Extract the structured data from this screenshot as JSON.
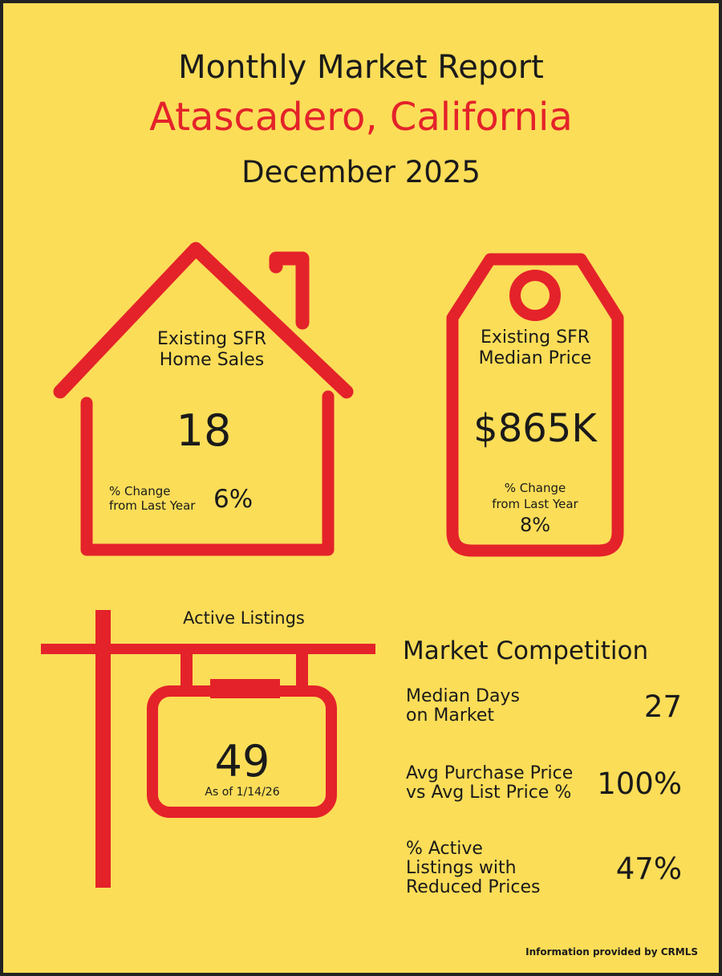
{
  "header": {
    "title": "Monthly Market Report",
    "city": "Atascadero, California",
    "month": "December 2025"
  },
  "home_sales": {
    "label_line1": "Existing SFR",
    "label_line2": "Home Sales",
    "value": "18",
    "change_label_line1": "% Change",
    "change_label_line2": "from Last Year",
    "change_value": "6%"
  },
  "median_price": {
    "label_line1": "Existing SFR",
    "label_line2": "Median Price",
    "value": "$865K",
    "change_label_line1": "% Change",
    "change_label_line2": "from Last Year",
    "change_value": "8%"
  },
  "active_listings": {
    "label": "Active Listings",
    "value": "49",
    "as_of": "As of 1/14/26"
  },
  "market_competition": {
    "heading": "Market Competition",
    "rows": [
      {
        "label_lines": [
          "Median Days",
          "on Market"
        ],
        "value": "27"
      },
      {
        "label_lines": [
          "Avg Purchase Price",
          "vs Avg List Price %"
        ],
        "value": "100%"
      },
      {
        "label_lines": [
          "% Active",
          "Listings with",
          "Reduced Prices"
        ],
        "value": "47%"
      }
    ]
  },
  "footer": {
    "credit": "Information provided by CRMLS"
  },
  "colors": {
    "background": "#fbdd58",
    "accent": "#e4222a",
    "text": "#1a1a1a",
    "border": "#222222"
  }
}
